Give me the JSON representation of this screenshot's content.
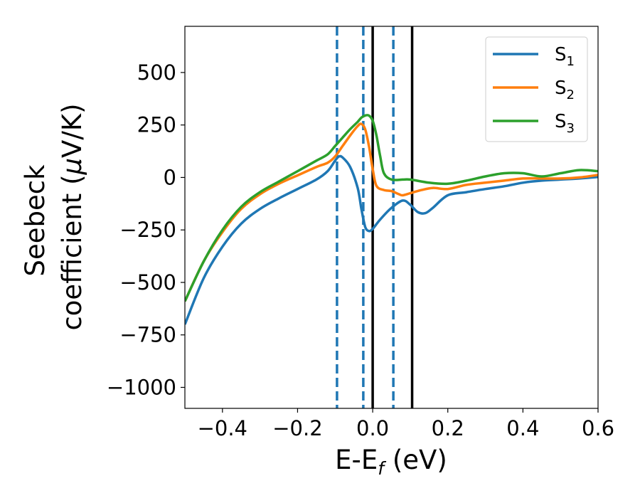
{
  "chart_data": {
    "type": "line",
    "xlabel": "E-E",
    "xlabel_sub": "f",
    "xlabel_unit": " (eV)",
    "ylabel_line1": "Seebeck",
    "ylabel_line2": "coefficient  (",
    "ylabel_mu": "μ",
    "ylabel_unit": "V/K)",
    "xlim": [
      -0.5,
      0.6
    ],
    "ylim": [
      -1100,
      720
    ],
    "x_ticks": [
      -0.4,
      -0.2,
      0.0,
      0.2,
      0.4,
      0.6
    ],
    "x_tick_labels": [
      "−0.4",
      "−0.2",
      "0.0",
      "0.2",
      "0.4",
      "0.6"
    ],
    "y_ticks": [
      500,
      250,
      0,
      -250,
      -500,
      -750,
      -1000
    ],
    "y_tick_labels": [
      "500",
      "250",
      "0",
      "−250",
      "−500",
      "−750",
      "−1000"
    ],
    "grid": false,
    "legend_position": "top-right",
    "series": [
      {
        "name": "S",
        "sub": "1",
        "color": "#1f77b4",
        "points": [
          [
            -0.5,
            -700
          ],
          [
            -0.45,
            -480
          ],
          [
            -0.4,
            -330
          ],
          [
            -0.35,
            -220
          ],
          [
            -0.3,
            -150
          ],
          [
            -0.25,
            -100
          ],
          [
            -0.2,
            -55
          ],
          [
            -0.15,
            -10
          ],
          [
            -0.12,
            30
          ],
          [
            -0.1,
            80
          ],
          [
            -0.09,
            100
          ],
          [
            -0.08,
            95
          ],
          [
            -0.06,
            50
          ],
          [
            -0.04,
            -50
          ],
          [
            -0.03,
            -150
          ],
          [
            -0.02,
            -235
          ],
          [
            -0.01,
            -255
          ],
          [
            0.0,
            -245
          ],
          [
            0.02,
            -200
          ],
          [
            0.05,
            -145
          ],
          [
            0.08,
            -110
          ],
          [
            0.1,
            -130
          ],
          [
            0.12,
            -165
          ],
          [
            0.14,
            -170
          ],
          [
            0.16,
            -145
          ],
          [
            0.2,
            -85
          ],
          [
            0.25,
            -70
          ],
          [
            0.3,
            -55
          ],
          [
            0.35,
            -42
          ],
          [
            0.4,
            -25
          ],
          [
            0.45,
            -15
          ],
          [
            0.5,
            -10
          ],
          [
            0.55,
            -5
          ],
          [
            0.6,
            2
          ]
        ]
      },
      {
        "name": "S",
        "sub": "2",
        "color": "#ff7f0e",
        "points": [
          [
            -0.5,
            -590
          ],
          [
            -0.45,
            -400
          ],
          [
            -0.4,
            -260
          ],
          [
            -0.35,
            -150
          ],
          [
            -0.3,
            -80
          ],
          [
            -0.25,
            -30
          ],
          [
            -0.2,
            10
          ],
          [
            -0.15,
            50
          ],
          [
            -0.12,
            70
          ],
          [
            -0.1,
            100
          ],
          [
            -0.08,
            150
          ],
          [
            -0.06,
            200
          ],
          [
            -0.04,
            245
          ],
          [
            -0.03,
            255
          ],
          [
            -0.02,
            230
          ],
          [
            -0.01,
            150
          ],
          [
            0.0,
            40
          ],
          [
            0.01,
            -40
          ],
          [
            0.03,
            -60
          ],
          [
            0.05,
            -65
          ],
          [
            0.07,
            -80
          ],
          [
            0.08,
            -85
          ],
          [
            0.1,
            -75
          ],
          [
            0.13,
            -60
          ],
          [
            0.16,
            -50
          ],
          [
            0.2,
            -55
          ],
          [
            0.25,
            -35
          ],
          [
            0.3,
            -25
          ],
          [
            0.35,
            -15
          ],
          [
            0.4,
            -5
          ],
          [
            0.45,
            -5
          ],
          [
            0.5,
            -5
          ],
          [
            0.55,
            0
          ],
          [
            0.6,
            12
          ]
        ]
      },
      {
        "name": "S",
        "sub": "3",
        "color": "#2ca02c",
        "points": [
          [
            -0.5,
            -590
          ],
          [
            -0.45,
            -400
          ],
          [
            -0.4,
            -250
          ],
          [
            -0.35,
            -140
          ],
          [
            -0.3,
            -70
          ],
          [
            -0.25,
            -20
          ],
          [
            -0.2,
            30
          ],
          [
            -0.15,
            80
          ],
          [
            -0.12,
            110
          ],
          [
            -0.1,
            150
          ],
          [
            -0.08,
            190
          ],
          [
            -0.06,
            230
          ],
          [
            -0.04,
            265
          ],
          [
            -0.03,
            285
          ],
          [
            -0.02,
            295
          ],
          [
            -0.01,
            295
          ],
          [
            0.0,
            270
          ],
          [
            0.01,
            200
          ],
          [
            0.02,
            100
          ],
          [
            0.03,
            20
          ],
          [
            0.05,
            -10
          ],
          [
            0.08,
            -10
          ],
          [
            0.1,
            -10
          ],
          [
            0.15,
            -25
          ],
          [
            0.2,
            -30
          ],
          [
            0.25,
            -15
          ],
          [
            0.3,
            5
          ],
          [
            0.35,
            20
          ],
          [
            0.4,
            20
          ],
          [
            0.45,
            5
          ],
          [
            0.5,
            20
          ],
          [
            0.55,
            35
          ],
          [
            0.6,
            30
          ]
        ]
      }
    ],
    "vlines": [
      {
        "x": -0.095,
        "style": "dashed",
        "color": "#1f77b4"
      },
      {
        "x": -0.025,
        "style": "dashed",
        "color": "#1f77b4"
      },
      {
        "x": 0.0,
        "style": "solid",
        "color": "#000000"
      },
      {
        "x": 0.055,
        "style": "dashed",
        "color": "#1f77b4"
      },
      {
        "x": 0.105,
        "style": "solid",
        "color": "#000000"
      }
    ]
  }
}
